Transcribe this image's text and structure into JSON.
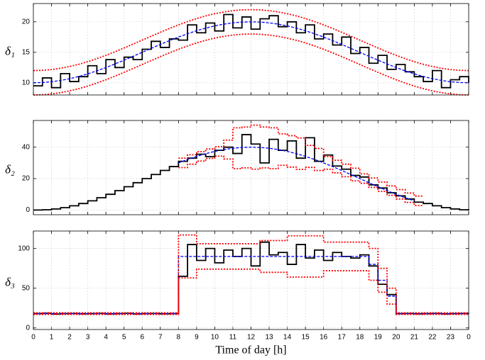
{
  "chart_data": [
    {
      "type": "line",
      "ylabel": "δ₁",
      "xlim": [
        0,
        24
      ],
      "ylim": [
        8,
        23
      ],
      "yticks": [
        10,
        15,
        20
      ],
      "xticks": [
        0,
        1,
        2,
        3,
        4,
        5,
        6,
        7,
        8,
        9,
        10,
        11,
        12,
        13,
        14,
        15,
        16,
        17,
        18,
        19,
        20,
        21,
        22,
        23,
        {
          "value": 24,
          "label": "0"
        }
      ],
      "grid": true,
      "show_xticklabels": false,
      "x": [
        0,
        0.5,
        1,
        1.5,
        2,
        2.5,
        3,
        3.5,
        4,
        4.5,
        5,
        5.5,
        6,
        6.5,
        7,
        7.5,
        8,
        8.5,
        9,
        9.5,
        10,
        10.5,
        11,
        11.5,
        12,
        12.5,
        13,
        13.5,
        14,
        14.5,
        15,
        15.5,
        16,
        16.5,
        17,
        17.5,
        18,
        18.5,
        19,
        19.5,
        20,
        20.5,
        21,
        21.5,
        22,
        22.5,
        23,
        23.5,
        24
      ],
      "series": [
        {
          "color": "#000000",
          "style": "solid",
          "step": true,
          "values": [
            9.5,
            10.8,
            9.2,
            11.5,
            10.2,
            11.0,
            12.8,
            11.5,
            13.8,
            12.5,
            14.2,
            13.8,
            15.5,
            16.8,
            15.8,
            17.2,
            17.0,
            19.5,
            18.2,
            19.8,
            18.5,
            21.2,
            19.0,
            20.8,
            18.8,
            20.5,
            21.0,
            19.2,
            20.0,
            18.2,
            19.5,
            17.2,
            18.0,
            16.2,
            17.5,
            14.8,
            15.8,
            13.2,
            14.5,
            12.2,
            13.0,
            11.8,
            11.0,
            10.2,
            12.0,
            9.2,
            10.5,
            11.0,
            10.0
          ]
        },
        {
          "color": "#0000ff",
          "style": "dashed",
          "step": false,
          "values": [
            10,
            10.04,
            10.17,
            10.38,
            10.67,
            11.03,
            11.46,
            11.96,
            12.5,
            13.09,
            13.71,
            14.35,
            15,
            15.65,
            16.29,
            16.91,
            17.5,
            18.04,
            18.54,
            18.97,
            19.33,
            19.62,
            19.83,
            19.96,
            20,
            19.96,
            19.83,
            19.62,
            19.33,
            18.97,
            18.54,
            18.04,
            17.5,
            16.91,
            16.29,
            15.65,
            15,
            14.35,
            13.71,
            13.09,
            12.5,
            11.96,
            11.46,
            11.03,
            10.67,
            10.38,
            10.17,
            10.04,
            10
          ]
        },
        {
          "color": "#ff0000",
          "style": "dotted",
          "step": false,
          "values": [
            12,
            12.04,
            12.17,
            12.38,
            12.67,
            13.03,
            13.46,
            13.96,
            14.5,
            15.09,
            15.71,
            16.35,
            17,
            17.65,
            18.29,
            18.91,
            19.5,
            20.04,
            20.54,
            20.97,
            21.33,
            21.62,
            21.83,
            21.96,
            22,
            21.96,
            21.83,
            21.62,
            21.33,
            20.97,
            20.54,
            20.04,
            19.5,
            18.91,
            18.29,
            17.65,
            17,
            16.35,
            15.71,
            15.09,
            14.5,
            13.96,
            13.46,
            13.03,
            12.67,
            12.38,
            12.17,
            12.04,
            12
          ]
        },
        {
          "color": "#ff0000",
          "style": "dotted",
          "step": false,
          "values": [
            8,
            8.04,
            8.17,
            8.38,
            8.67,
            9.03,
            9.46,
            9.96,
            10.5,
            11.09,
            11.71,
            12.35,
            13,
            13.65,
            14.29,
            14.91,
            15.5,
            16.04,
            16.54,
            16.97,
            17.33,
            17.62,
            17.83,
            17.96,
            18,
            17.96,
            17.83,
            17.62,
            17.33,
            16.97,
            16.54,
            16.04,
            15.5,
            14.91,
            14.29,
            13.65,
            13,
            12.35,
            11.71,
            11.09,
            10.5,
            9.96,
            9.46,
            9.03,
            8.67,
            8.38,
            8.17,
            8.04,
            8
          ]
        }
      ]
    },
    {
      "type": "line",
      "ylabel": "δ₂",
      "xlim": [
        0,
        24
      ],
      "ylim": [
        -3,
        57
      ],
      "yticks": [
        0,
        20,
        40
      ],
      "xticks": [
        0,
        1,
        2,
        3,
        4,
        5,
        6,
        7,
        8,
        9,
        10,
        11,
        12,
        13,
        14,
        15,
        16,
        17,
        18,
        19,
        20,
        21,
        22,
        23,
        {
          "value": 24,
          "label": "0"
        }
      ],
      "grid": true,
      "show_xticklabels": false,
      "x": [
        0,
        0.5,
        1,
        1.5,
        2,
        2.5,
        3,
        3.5,
        4,
        4.5,
        5,
        5.5,
        6,
        6.5,
        7,
        7.5,
        8,
        8.5,
        9,
        9.5,
        10,
        10.5,
        11,
        11.5,
        12,
        12.5,
        13,
        13.5,
        14,
        14.5,
        15,
        15.5,
        16,
        16.5,
        17,
        17.5,
        18,
        18.5,
        19,
        19.5,
        20,
        20.5,
        21,
        21.5,
        22,
        22.5,
        23,
        23.5,
        24
      ],
      "series": [
        {
          "color": "#000000",
          "style": "solid",
          "step": true,
          "values": [
            0,
            0.17,
            0.68,
            1.52,
            2.68,
            4.13,
            5.86,
            7.83,
            10,
            12.35,
            14.82,
            17.39,
            20,
            22.61,
            25.18,
            27.65,
            31,
            33,
            35.5,
            34,
            38,
            40,
            36,
            48,
            42,
            30,
            45,
            38,
            44,
            33,
            46,
            31,
            35,
            28,
            26,
            22,
            21,
            16,
            14,
            11,
            9,
            7,
            5,
            4.13,
            2.68,
            1.52,
            0.68,
            0.17,
            0
          ]
        },
        {
          "color": "#0000ff",
          "style": "dashed",
          "step": false,
          "values": [
            null,
            null,
            null,
            null,
            null,
            null,
            null,
            null,
            null,
            null,
            null,
            null,
            null,
            null,
            null,
            null,
            30,
            32.17,
            34.14,
            35.87,
            37.32,
            38.48,
            39.32,
            39.83,
            40,
            39.83,
            39.32,
            38.48,
            37.32,
            35.87,
            34.14,
            32.17,
            30,
            27.65,
            25.18,
            22.61,
            20,
            17.39,
            14.82,
            12.35,
            10,
            7.83,
            5.86,
            null,
            null,
            null,
            null,
            null,
            null
          ]
        },
        {
          "color": "#ff0000",
          "style": "dotted",
          "step": true,
          "values": [
            null,
            null,
            null,
            null,
            null,
            null,
            null,
            null,
            null,
            null,
            null,
            null,
            null,
            null,
            null,
            null,
            33,
            35.17,
            37.14,
            38.87,
            40.32,
            44.48,
            52.32,
            52.83,
            54,
            52.83,
            52.32,
            48.48,
            47.32,
            45.87,
            41.14,
            39.17,
            34,
            31.65,
            29.18,
            26.61,
            23,
            20.39,
            17.82,
            15.35,
            13,
            10.83,
            8.86,
            null,
            null,
            null,
            null,
            null,
            null
          ]
        },
        {
          "color": "#ff0000",
          "style": "dotted",
          "step": true,
          "values": [
            null,
            null,
            null,
            null,
            null,
            null,
            null,
            null,
            null,
            null,
            null,
            null,
            null,
            null,
            null,
            null,
            27,
            29.17,
            31.14,
            32.87,
            34.32,
            32.48,
            26.32,
            26.83,
            26,
            26.83,
            26.32,
            28.48,
            27.32,
            25.87,
            27.14,
            25.17,
            26,
            23.65,
            21.18,
            18.61,
            17,
            14.39,
            11.82,
            9.35,
            7,
            4.83,
            2.86,
            null,
            null,
            null,
            null,
            null,
            null
          ]
        }
      ]
    },
    {
      "type": "line",
      "ylabel": "δ₃",
      "xlabel": "Time of day [h]",
      "xlim": [
        0,
        24
      ],
      "ylim": [
        -2,
        122
      ],
      "yticks": [
        0,
        50,
        100
      ],
      "xticks": [
        0,
        1,
        2,
        3,
        4,
        5,
        6,
        7,
        8,
        9,
        10,
        11,
        12,
        13,
        14,
        15,
        16,
        17,
        18,
        19,
        20,
        21,
        22,
        23,
        {
          "value": 24,
          "label": "0"
        }
      ],
      "grid": true,
      "show_xticklabels": true,
      "x": [
        0,
        0.5,
        1,
        1.5,
        2,
        2.5,
        3,
        3.5,
        4,
        4.5,
        5,
        5.5,
        6,
        6.5,
        7,
        7.5,
        8,
        8.5,
        9,
        9.5,
        10,
        10.5,
        11,
        11.5,
        12,
        12.5,
        13,
        13.5,
        14,
        14.5,
        15,
        15.5,
        16,
        16.5,
        17,
        17.5,
        18,
        18.5,
        19,
        19.5,
        20,
        20.5,
        21,
        21.5,
        22,
        22.5,
        23,
        23.5,
        24
      ],
      "series": [
        {
          "color": "#000000",
          "style": "solid",
          "step": true,
          "values": [
            18,
            18.5,
            17.5,
            18,
            18.2,
            17.8,
            18,
            18.3,
            17.7,
            18,
            18.4,
            17.6,
            18,
            18.2,
            17.8,
            18,
            65,
            105,
            85,
            100,
            82,
            98,
            90,
            100,
            78,
            108,
            92,
            95,
            80,
            105,
            88,
            98,
            85,
            95,
            90,
            88,
            92,
            78,
            55,
            42,
            18,
            18.2,
            17.8,
            18,
            18.3,
            17.7,
            18,
            18.2,
            18
          ]
        },
        {
          "color": "#0000ff",
          "style": "dashed",
          "step": true,
          "values": [
            18,
            18,
            18,
            18,
            18,
            18,
            18,
            18,
            18,
            18,
            18,
            18,
            18,
            18,
            18,
            18,
            90,
            90,
            90,
            90,
            90,
            90,
            90,
            90,
            90,
            90,
            90,
            90,
            90,
            90,
            90,
            90,
            90,
            90,
            90,
            90,
            90,
            80,
            60,
            40,
            18,
            18,
            18,
            18,
            18,
            18,
            18,
            18,
            18
          ]
        },
        {
          "color": "#ff0000",
          "style": "dotted",
          "step": true,
          "values": [
            19,
            19,
            19,
            19,
            19,
            19,
            19,
            19,
            19,
            19,
            19,
            19,
            19,
            19,
            19,
            19,
            117,
            117,
            106,
            106,
            106,
            106,
            106,
            106,
            106,
            110,
            110,
            110,
            116,
            116,
            116,
            116,
            108,
            108,
            108,
            108,
            108,
            100,
            75,
            50,
            19,
            19,
            19,
            19,
            19,
            19,
            19,
            19,
            19
          ]
        },
        {
          "color": "#ff0000",
          "style": "dotted",
          "step": true,
          "values": [
            17,
            17,
            17,
            17,
            17,
            17,
            17,
            17,
            17,
            17,
            17,
            17,
            17,
            17,
            17,
            17,
            63,
            63,
            74,
            74,
            74,
            74,
            74,
            74,
            74,
            70,
            70,
            70,
            64,
            64,
            64,
            64,
            72,
            72,
            72,
            72,
            72,
            60,
            45,
            30,
            17,
            17,
            17,
            17,
            17,
            17,
            17,
            17,
            17
          ]
        }
      ]
    }
  ]
}
